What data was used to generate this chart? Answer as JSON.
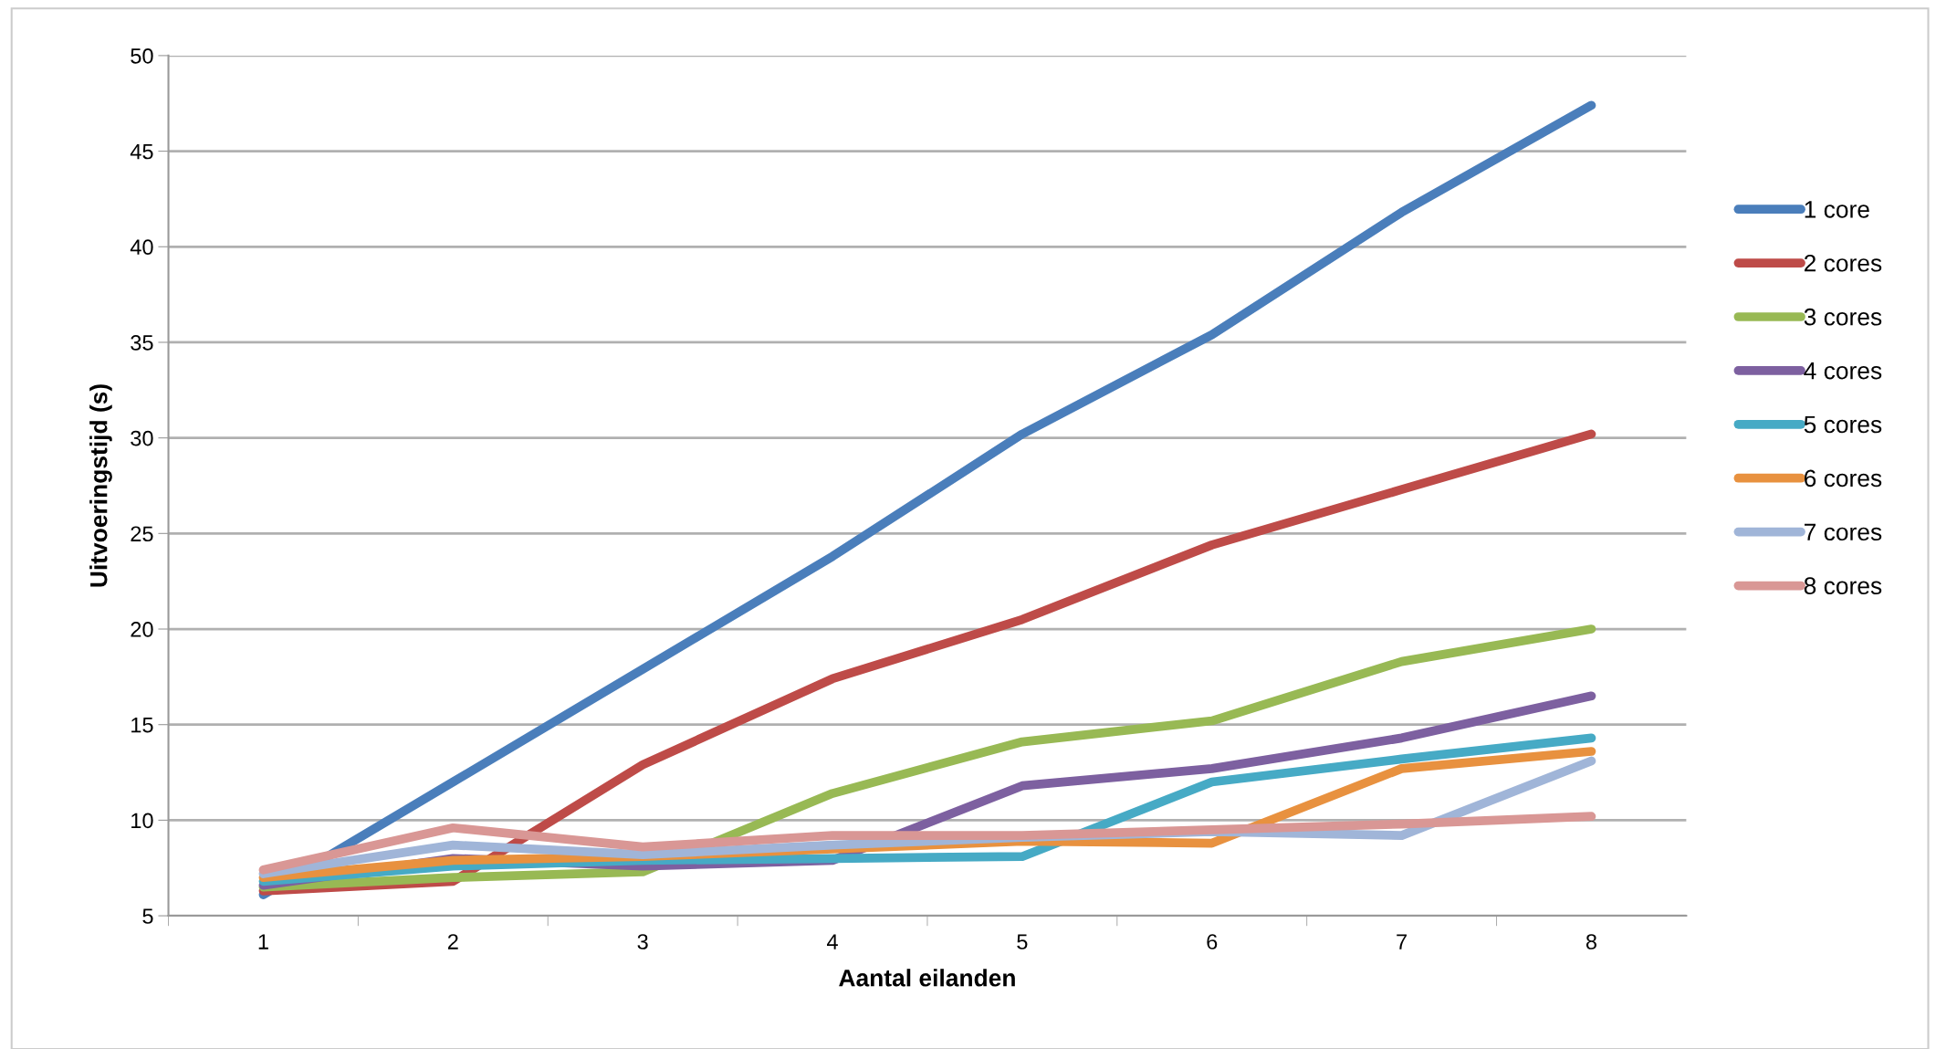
{
  "chart_data": {
    "type": "line",
    "xlabel": "Aantal eilanden",
    "ylabel": "Uitvoeringstijd (s)",
    "categories": [
      "1",
      "2",
      "3",
      "4",
      "5",
      "6",
      "7",
      "8"
    ],
    "ylim": [
      5,
      50
    ],
    "yticks": [
      5,
      10,
      15,
      20,
      25,
      30,
      35,
      40,
      45,
      50
    ],
    "grid": "y",
    "legend": "right",
    "marker": "none",
    "line_style": "solid",
    "series": [
      {
        "name": "1 core",
        "color": "#4a7ebb",
        "values": [
          6.1,
          12.0,
          17.9,
          23.8,
          30.2,
          35.4,
          41.8,
          47.4
        ]
      },
      {
        "name": "2 cores",
        "color": "#be4b48",
        "values": [
          6.3,
          6.8,
          12.9,
          17.4,
          20.5,
          24.4,
          27.3,
          30.2
        ]
      },
      {
        "name": "3 cores",
        "color": "#98b954",
        "values": [
          6.5,
          7.0,
          7.3,
          11.4,
          14.1,
          15.2,
          18.3,
          20.0
        ]
      },
      {
        "name": "4 cores",
        "color": "#7d60a0",
        "values": [
          6.6,
          8.0,
          7.6,
          7.9,
          11.8,
          12.7,
          14.3,
          16.5
        ]
      },
      {
        "name": "5 cores",
        "color": "#46aac5",
        "values": [
          6.8,
          7.6,
          7.9,
          8.0,
          8.1,
          12.0,
          13.2,
          14.3
        ]
      },
      {
        "name": "6 cores",
        "color": "#e8913f",
        "values": [
          7.0,
          7.9,
          8.1,
          8.5,
          8.9,
          8.8,
          12.7,
          13.6
        ]
      },
      {
        "name": "7 cores",
        "color": "#a0b5d8",
        "values": [
          7.2,
          8.7,
          8.2,
          8.7,
          9.1,
          9.4,
          9.2,
          13.1
        ]
      },
      {
        "name": "8 cores",
        "color": "#d99795",
        "values": [
          7.4,
          9.6,
          8.6,
          9.2,
          9.2,
          9.5,
          9.8,
          10.2
        ]
      }
    ]
  }
}
